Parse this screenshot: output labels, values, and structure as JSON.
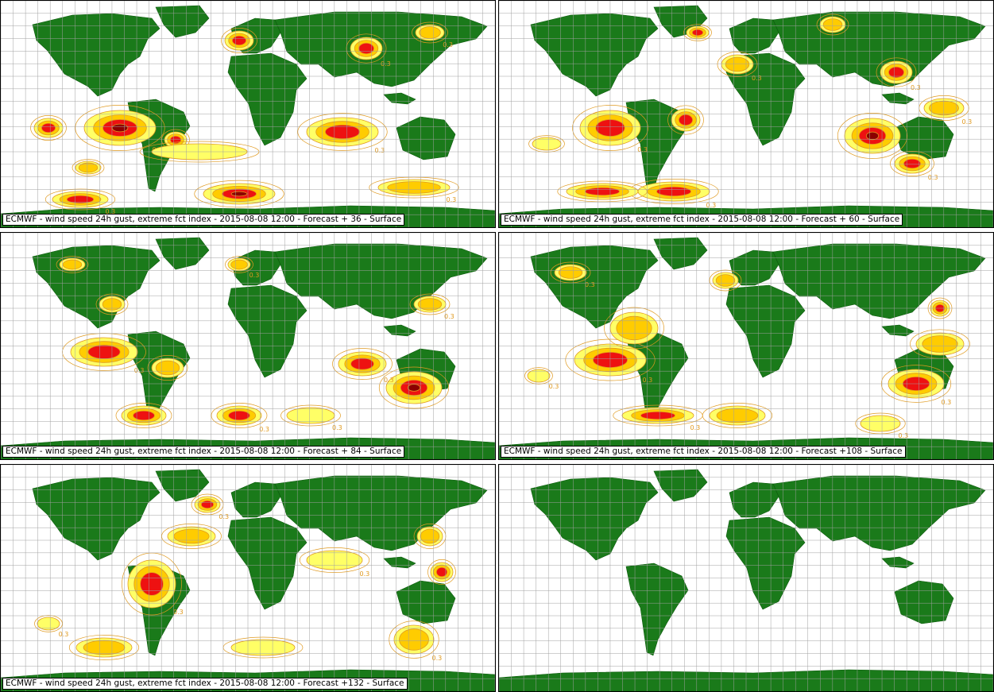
{
  "palette": {
    "land": "#1a7a1a",
    "grid": "#a0a0a0",
    "contour": "#e09a20",
    "light": "#ffff66",
    "medium": "#ffcc00",
    "high": "#ee1111",
    "extreme": "#8b0000"
  },
  "contour_label": "0.3",
  "panels": [
    {
      "caption": "ECMWF - wind speed 24h gust, extreme fct index - 2015-08-08 12:00 - Forecast + 36 - Surface",
      "forecast_hour": 36,
      "has_field": true
    },
    {
      "caption": "ECMWF - wind speed 24h gust, extreme fct index - 2015-08-08 12:00 - Forecast + 60 - Surface",
      "forecast_hour": 60,
      "has_field": true
    },
    {
      "caption": "ECMWF - wind speed 24h gust, extreme fct index - 2015-08-08 12:00 - Forecast + 84 - Surface",
      "forecast_hour": 84,
      "has_field": true
    },
    {
      "caption": "ECMWF - wind speed 24h gust, extreme fct index - 2015-08-08 12:00 - Forecast +108 - Surface",
      "forecast_hour": 108,
      "has_field": true
    },
    {
      "caption": "ECMWF - wind speed 24h gust, extreme fct index - 2015-08-08 12:00 - Forecast +132 - Surface",
      "forecast_hour": 132,
      "has_field": true
    },
    {
      "caption": "",
      "forecast_hour": null,
      "has_field": false
    }
  ]
}
